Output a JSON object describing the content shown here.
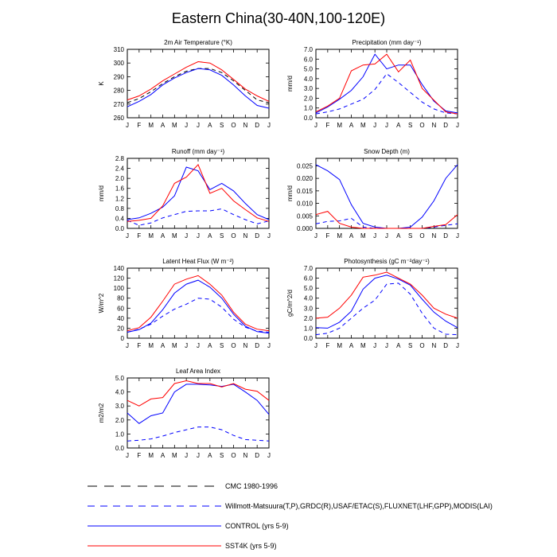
{
  "page": {
    "title": "Eastern China(30-40N,100-120E)"
  },
  "months": [
    "J",
    "F",
    "M",
    "A",
    "M",
    "J",
    "J",
    "A",
    "S",
    "O",
    "N",
    "D",
    "J"
  ],
  "colors": {
    "control": "#0000ff",
    "sst4k": "#ff0000",
    "obs": "#0000ff",
    "axis": "#000000"
  },
  "legend": [
    {
      "label": "CMC 1980-1996",
      "style": "longdash",
      "color": "#000000"
    },
    {
      "label": "Willmott-Matsuura(T,P),GRDC(R),USAF/ETAC(S),FLUXNET(LHF,GPP),MODIS(LAI)",
      "style": "dash",
      "color": "#0000ff"
    },
    {
      "label": "CONTROL (yrs 5-9)",
      "style": "solid",
      "color": "#0000ff"
    },
    {
      "label": "SST4K (yrs 5-9)",
      "style": "solid",
      "color": "#ff0000"
    }
  ],
  "chart_data": [
    {
      "type": "line",
      "title": "2m Air Temperature (°K)",
      "ylabel": "K",
      "ylim": [
        260,
        310
      ],
      "yticks": [
        "260",
        "270",
        "280",
        "290",
        "300",
        "310"
      ],
      "series": [
        {
          "name": "CMC 1980-1996",
          "values": [
            271,
            274,
            279,
            285,
            290,
            294,
            296,
            296,
            293,
            287,
            280,
            273,
            271
          ]
        },
        {
          "name": "CONTROL (yrs 5-9)",
          "values": [
            268,
            272,
            277,
            284,
            289,
            293,
            296,
            295,
            291,
            284,
            276,
            269,
            267
          ]
        },
        {
          "name": "SST4K (yrs 5-9)",
          "values": [
            273,
            276,
            281,
            287,
            292,
            297,
            301,
            300,
            295,
            288,
            281,
            276,
            272
          ]
        }
      ]
    },
    {
      "type": "line",
      "title": "Precipitation (mm day⁻¹)",
      "ylabel": "mm/d",
      "ylim": [
        0,
        7
      ],
      "yticks": [
        "0.0",
        "1.0",
        "2.0",
        "3.0",
        "4.0",
        "5.0",
        "6.0",
        "7.0"
      ],
      "series": [
        {
          "name": "Willmott-Matsuura(T,P),GRDC(R),USAF/ETAC(S),FLUXNET(LHF,GPP),MODIS(LAI)",
          "values": [
            0.4,
            0.6,
            0.9,
            1.4,
            1.9,
            2.9,
            4.5,
            3.6,
            2.6,
            1.6,
            0.9,
            0.5,
            0.4
          ]
        },
        {
          "name": "CONTROL (yrs 5-9)",
          "values": [
            0.5,
            1.1,
            1.9,
            2.8,
            4.2,
            6.5,
            5.0,
            5.4,
            5.4,
            3.4,
            1.7,
            0.7,
            0.5
          ]
        },
        {
          "name": "SST4K (yrs 5-9)",
          "values": [
            0.6,
            1.2,
            2.0,
            4.8,
            5.4,
            5.5,
            6.5,
            4.7,
            5.9,
            3.0,
            1.8,
            0.6,
            0.4
          ]
        }
      ]
    },
    {
      "type": "line",
      "title": "Runoff (mm day⁻¹)",
      "ylabel": "mm/d",
      "ylim": [
        0,
        2.8
      ],
      "yticks": [
        "0.0",
        "0.4",
        "0.8",
        "1.2",
        "1.6",
        "2.0",
        "2.4",
        "2.8"
      ],
      "series": [
        {
          "name": "Willmott-Matsuura(T,P),GRDC(R),USAF/ETAC(S),FLUXNET(LHF,GPP),MODIS(LAI)",
          "values": [
            0.32,
            0.12,
            0.22,
            0.42,
            0.55,
            0.68,
            0.7,
            0.7,
            0.78,
            0.55,
            0.35,
            0.18,
            0.3
          ]
        },
        {
          "name": "CONTROL (yrs 5-9)",
          "values": [
            0.35,
            0.42,
            0.6,
            0.85,
            1.3,
            2.45,
            2.3,
            1.55,
            1.8,
            1.5,
            1.0,
            0.55,
            0.35
          ]
        },
        {
          "name": "SST4K (yrs 5-9)",
          "values": [
            0.28,
            0.32,
            0.4,
            0.9,
            1.8,
            2.05,
            2.55,
            1.4,
            1.6,
            1.1,
            0.75,
            0.42,
            0.28
          ]
        }
      ]
    },
    {
      "type": "line",
      "title": "Snow Depth (m)",
      "ylabel": "mm/d",
      "ylim": [
        0,
        0.028
      ],
      "yticks": [
        "0.000",
        "0.005",
        "0.010",
        "0.015",
        "0.020",
        "0.025"
      ],
      "series": [
        {
          "name": "Willmott-Matsuura(T,P),GRDC(R),USAF/ETAC(S),FLUXNET(LHF,GPP),MODIS(LAI)",
          "values": [
            0.0018,
            0.0028,
            0.003,
            0.004,
            0.0005,
            0.0,
            0.0,
            0.0,
            0.0,
            0.0,
            0.0005,
            0.0012,
            0.0018
          ]
        },
        {
          "name": "CONTROL (yrs 5-9)",
          "values": [
            0.0255,
            0.023,
            0.0195,
            0.0095,
            0.002,
            0.0005,
            0.0,
            0.0,
            0.0005,
            0.0045,
            0.011,
            0.02,
            0.0255
          ]
        },
        {
          "name": "SST4K (yrs 5-9)",
          "values": [
            0.0055,
            0.0068,
            0.002,
            0.0005,
            0.0,
            0.0,
            0.0,
            0.0,
            0.0,
            0.0,
            0.0008,
            0.0015,
            0.0055
          ]
        }
      ]
    },
    {
      "type": "line",
      "title": "Latent Heat Flux (W m⁻²)",
      "ylabel": "W/m^2",
      "ylim": [
        0,
        140
      ],
      "yticks": [
        "0",
        "20",
        "40",
        "60",
        "80",
        "100",
        "120",
        "140"
      ],
      "series": [
        {
          "name": "Willmott-Matsuura(T,P),GRDC(R),USAF/ETAC(S),FLUXNET(LHF,GPP),MODIS(LAI)",
          "values": [
            12,
            18,
            28,
            44,
            58,
            68,
            80,
            78,
            62,
            38,
            22,
            14,
            12
          ]
        },
        {
          "name": "CONTROL (yrs 5-9)",
          "values": [
            12,
            17,
            30,
            57,
            90,
            108,
            116,
            102,
            80,
            48,
            24,
            13,
            10
          ]
        },
        {
          "name": "SST4K (yrs 5-9)",
          "values": [
            15,
            21,
            42,
            74,
            108,
            118,
            125,
            108,
            86,
            52,
            28,
            18,
            15
          ]
        }
      ]
    },
    {
      "type": "line",
      "title": "Photosynthesis (gC m⁻²day⁻¹)",
      "ylabel": "gC/m^2/d",
      "ylim": [
        0,
        7
      ],
      "yticks": [
        "0.0",
        "1.0",
        "2.0",
        "3.0",
        "4.0",
        "5.0",
        "6.0",
        "7.0"
      ],
      "series": [
        {
          "name": "Willmott-Matsuura(T,P),GRDC(R),USAF/ETAC(S),FLUXNET(LHF,GPP),MODIS(LAI)",
          "values": [
            0.35,
            0.5,
            1.0,
            2.0,
            3.0,
            3.8,
            5.4,
            5.5,
            4.4,
            2.5,
            1.0,
            0.4,
            0.35
          ]
        },
        {
          "name": "CONTROL (yrs 5-9)",
          "values": [
            1.05,
            1.0,
            1.6,
            2.7,
            4.9,
            6.0,
            6.3,
            5.9,
            5.3,
            3.9,
            2.6,
            1.7,
            1.05
          ]
        },
        {
          "name": "SST4K (yrs 5-9)",
          "values": [
            2.0,
            2.1,
            3.0,
            4.3,
            6.1,
            6.3,
            6.6,
            6.0,
            5.4,
            4.3,
            3.0,
            2.4,
            2.0
          ]
        }
      ]
    },
    {
      "type": "line",
      "title": "Leaf Area Index",
      "ylabel": "m2/m2",
      "ylim": [
        0,
        5
      ],
      "yticks": [
        "0.0",
        "1.0",
        "2.0",
        "3.0",
        "4.0",
        "5.0"
      ],
      "series": [
        {
          "name": "Willmott-Matsuura(T,P),GRDC(R),USAF/ETAC(S),FLUXNET(LHF,GPP),MODIS(LAI)",
          "values": [
            0.5,
            0.55,
            0.65,
            0.85,
            1.1,
            1.3,
            1.5,
            1.5,
            1.3,
            0.9,
            0.6,
            0.55,
            0.5
          ]
        },
        {
          "name": "CONTROL (yrs 5-9)",
          "values": [
            2.5,
            1.75,
            2.3,
            2.5,
            4.0,
            4.55,
            4.55,
            4.5,
            4.4,
            4.55,
            4.0,
            3.4,
            2.4
          ]
        },
        {
          "name": "SST4K (yrs 5-9)",
          "values": [
            3.4,
            3.0,
            3.5,
            3.6,
            4.6,
            4.8,
            4.6,
            4.6,
            4.35,
            4.6,
            4.2,
            4.05,
            3.4
          ]
        }
      ]
    }
  ]
}
